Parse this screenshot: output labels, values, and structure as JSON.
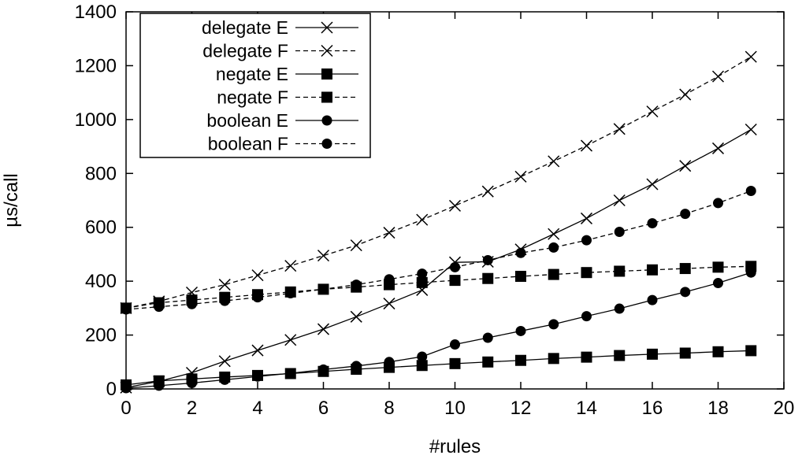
{
  "chart_data": {
    "type": "line",
    "xlabel": "#rules",
    "ylabel": "µs/call",
    "xlim": [
      0,
      20
    ],
    "ylim": [
      0,
      1400
    ],
    "xticks": [
      0,
      2,
      4,
      6,
      8,
      10,
      12,
      14,
      16,
      18,
      20
    ],
    "yticks": [
      0,
      200,
      400,
      600,
      800,
      1000,
      1200,
      1400
    ],
    "grid": false,
    "legend_position": "top-left",
    "x": [
      0,
      1,
      2,
      3,
      4,
      5,
      6,
      7,
      8,
      9,
      10,
      11,
      12,
      13,
      14,
      15,
      16,
      17,
      18,
      19
    ],
    "series": [
      {
        "name": "delegate E",
        "marker": "x",
        "dash": "solid",
        "values": [
          5,
          28,
          60,
          103,
          143,
          182,
          222,
          268,
          317,
          367,
          470,
          472,
          518,
          575,
          633,
          700,
          760,
          828,
          893,
          963
        ]
      },
      {
        "name": "delegate F",
        "marker": "x",
        "dash": "dashed",
        "values": [
          300,
          325,
          358,
          387,
          422,
          457,
          495,
          533,
          580,
          628,
          680,
          733,
          788,
          845,
          903,
          965,
          1030,
          1093,
          1160,
          1233
        ]
      },
      {
        "name": "negate E",
        "marker": "square",
        "dash": "solid",
        "values": [
          15,
          30,
          37,
          44,
          50,
          57,
          65,
          73,
          80,
          87,
          94,
          100,
          106,
          113,
          118,
          124,
          129,
          133,
          138,
          142
        ]
      },
      {
        "name": "negate F",
        "marker": "square",
        "dash": "dashed",
        "values": [
          300,
          320,
          330,
          340,
          350,
          360,
          370,
          378,
          387,
          395,
          403,
          410,
          418,
          425,
          432,
          437,
          442,
          447,
          452,
          455
        ]
      },
      {
        "name": "boolean E",
        "marker": "circle",
        "dash": "solid",
        "values": [
          3,
          12,
          22,
          34,
          46,
          58,
          72,
          85,
          100,
          120,
          165,
          190,
          215,
          240,
          270,
          298,
          330,
          360,
          393,
          432
        ]
      },
      {
        "name": "boolean F",
        "marker": "circle",
        "dash": "dashed",
        "values": [
          295,
          305,
          315,
          327,
          340,
          355,
          370,
          387,
          407,
          428,
          452,
          478,
          505,
          525,
          552,
          583,
          615,
          650,
          690,
          735
        ]
      }
    ]
  }
}
